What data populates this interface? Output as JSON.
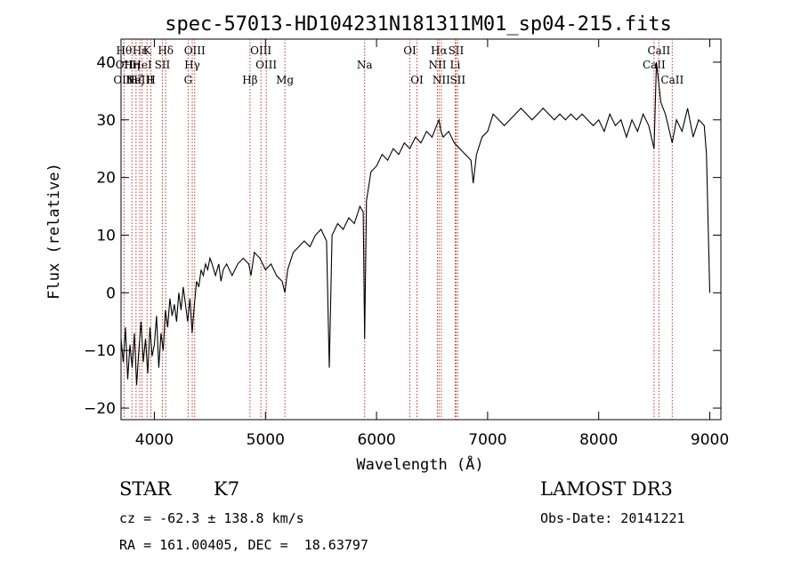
{
  "chart_data": {
    "type": "line",
    "title": "spec-57013-HD104231N181311M01_sp04-215.fits",
    "xlabel": "Wavelength (Å)",
    "ylabel": "Flux (relative)",
    "xlim": [
      3700,
      9100
    ],
    "ylim": [
      -22,
      44
    ],
    "x_ticks": [
      4000,
      5000,
      6000,
      7000,
      8000,
      9000
    ],
    "y_ticks": [
      -20,
      -10,
      0,
      10,
      20,
      30,
      40
    ],
    "grid": false,
    "spectrum": [
      [
        3700,
        -8
      ],
      [
        3720,
        -12
      ],
      [
        3740,
        -6
      ],
      [
        3760,
        -15
      ],
      [
        3780,
        -9
      ],
      [
        3800,
        -13
      ],
      [
        3820,
        -7
      ],
      [
        3840,
        -16
      ],
      [
        3860,
        -10
      ],
      [
        3880,
        -5
      ],
      [
        3900,
        -12
      ],
      [
        3920,
        -8
      ],
      [
        3940,
        -14
      ],
      [
        3960,
        -6
      ],
      [
        3980,
        -11
      ],
      [
        4000,
        -9
      ],
      [
        4020,
        -4
      ],
      [
        4040,
        -13
      ],
      [
        4060,
        -7
      ],
      [
        4080,
        -10
      ],
      [
        4100,
        -3
      ],
      [
        4120,
        -6
      ],
      [
        4140,
        -1
      ],
      [
        4160,
        -4
      ],
      [
        4180,
        -2
      ],
      [
        4200,
        -5
      ],
      [
        4220,
        0
      ],
      [
        4240,
        -3
      ],
      [
        4260,
        1
      ],
      [
        4280,
        -2
      ],
      [
        4300,
        -5
      ],
      [
        4320,
        -1
      ],
      [
        4340,
        -7
      ],
      [
        4360,
        -2
      ],
      [
        4380,
        2
      ],
      [
        4400,
        1
      ],
      [
        4420,
        4
      ],
      [
        4440,
        3
      ],
      [
        4460,
        5
      ],
      [
        4480,
        4
      ],
      [
        4500,
        6
      ],
      [
        4520,
        5
      ],
      [
        4550,
        3
      ],
      [
        4580,
        5
      ],
      [
        4600,
        2
      ],
      [
        4620,
        4
      ],
      [
        4650,
        5
      ],
      [
        4700,
        3
      ],
      [
        4750,
        5
      ],
      [
        4800,
        6
      ],
      [
        4850,
        5
      ],
      [
        4870,
        3
      ],
      [
        4900,
        7
      ],
      [
        4950,
        6
      ],
      [
        5000,
        4
      ],
      [
        5050,
        5
      ],
      [
        5100,
        3
      ],
      [
        5150,
        2
      ],
      [
        5175,
        0
      ],
      [
        5200,
        4
      ],
      [
        5250,
        7
      ],
      [
        5300,
        8
      ],
      [
        5350,
        9
      ],
      [
        5400,
        8
      ],
      [
        5450,
        10
      ],
      [
        5500,
        11
      ],
      [
        5550,
        9
      ],
      [
        5575,
        -13
      ],
      [
        5600,
        10
      ],
      [
        5650,
        12
      ],
      [
        5700,
        11
      ],
      [
        5750,
        13
      ],
      [
        5800,
        12
      ],
      [
        5850,
        15
      ],
      [
        5880,
        14
      ],
      [
        5893,
        -8
      ],
      [
        5910,
        16
      ],
      [
        5950,
        21
      ],
      [
        6000,
        22
      ],
      [
        6050,
        24
      ],
      [
        6100,
        23
      ],
      [
        6150,
        25
      ],
      [
        6200,
        24
      ],
      [
        6250,
        26
      ],
      [
        6300,
        25
      ],
      [
        6350,
        27
      ],
      [
        6400,
        26
      ],
      [
        6450,
        28
      ],
      [
        6500,
        27
      ],
      [
        6540,
        29
      ],
      [
        6563,
        30
      ],
      [
        6580,
        28
      ],
      [
        6600,
        27
      ],
      [
        6650,
        28
      ],
      [
        6700,
        26
      ],
      [
        6750,
        25
      ],
      [
        6800,
        24
      ],
      [
        6850,
        23
      ],
      [
        6870,
        19
      ],
      [
        6900,
        24
      ],
      [
        6950,
        27
      ],
      [
        7000,
        28
      ],
      [
        7050,
        31
      ],
      [
        7100,
        30
      ],
      [
        7150,
        29
      ],
      [
        7200,
        30
      ],
      [
        7250,
        31
      ],
      [
        7300,
        32
      ],
      [
        7350,
        31
      ],
      [
        7400,
        30
      ],
      [
        7450,
        31
      ],
      [
        7500,
        32
      ],
      [
        7550,
        31
      ],
      [
        7600,
        30
      ],
      [
        7650,
        31
      ],
      [
        7700,
        30
      ],
      [
        7750,
        31
      ],
      [
        7800,
        30
      ],
      [
        7850,
        31
      ],
      [
        7900,
        30
      ],
      [
        7950,
        29
      ],
      [
        8000,
        30
      ],
      [
        8050,
        28
      ],
      [
        8100,
        31
      ],
      [
        8150,
        29
      ],
      [
        8200,
        30
      ],
      [
        8250,
        27
      ],
      [
        8300,
        30
      ],
      [
        8350,
        28
      ],
      [
        8400,
        31
      ],
      [
        8450,
        29
      ],
      [
        8498,
        25
      ],
      [
        8520,
        40
      ],
      [
        8542,
        36
      ],
      [
        8560,
        33
      ],
      [
        8600,
        31
      ],
      [
        8662,
        26
      ],
      [
        8700,
        30
      ],
      [
        8750,
        28
      ],
      [
        8800,
        32
      ],
      [
        8850,
        27
      ],
      [
        8900,
        30
      ],
      [
        8950,
        29
      ],
      [
        8970,
        24
      ],
      [
        9000,
        0
      ]
    ],
    "lines": [
      {
        "w": 3727,
        "top": "Hθ",
        "mid": "OII",
        "bot": "OIII"
      },
      {
        "w": 3798,
        "top": "",
        "mid": "Hη",
        "bot": ""
      },
      {
        "w": 3835,
        "top": "",
        "mid": "",
        "bot": "Hζ"
      },
      {
        "w": 3869,
        "top": "Hε",
        "mid": "",
        "bot": "NeIII"
      },
      {
        "w": 3889,
        "top": "",
        "mid": "HeI",
        "bot": ""
      },
      {
        "w": 3934,
        "top": "K",
        "mid": "",
        "bot": ""
      },
      {
        "w": 3969,
        "top": "",
        "mid": "",
        "bot": "H"
      },
      {
        "w": 4072,
        "top": "",
        "mid": "SII",
        "bot": ""
      },
      {
        "w": 4102,
        "top": "Hδ",
        "mid": "",
        "bot": ""
      },
      {
        "w": 4304,
        "top": "",
        "mid": "",
        "bot": "G"
      },
      {
        "w": 4341,
        "top": "",
        "mid": "Hγ",
        "bot": ""
      },
      {
        "w": 4363,
        "top": "OIII",
        "mid": "",
        "bot": ""
      },
      {
        "w": 4861,
        "top": "",
        "mid": "",
        "bot": "Hβ"
      },
      {
        "w": 4959,
        "top": "OIII",
        "mid": "",
        "bot": ""
      },
      {
        "w": 5007,
        "top": "",
        "mid": "OIII",
        "bot": ""
      },
      {
        "w": 5175,
        "top": "",
        "mid": "",
        "bot": "Mg"
      },
      {
        "w": 5893,
        "top": "",
        "mid": "Na",
        "bot": ""
      },
      {
        "w": 6300,
        "top": "OI",
        "mid": "",
        "bot": ""
      },
      {
        "w": 6364,
        "top": "",
        "mid": "",
        "bot": "OI"
      },
      {
        "w": 6548,
        "top": "",
        "mid": "NII",
        "bot": ""
      },
      {
        "w": 6563,
        "top": "Hα",
        "mid": "",
        "bot": ""
      },
      {
        "w": 6583,
        "top": "",
        "mid": "",
        "bot": "NII"
      },
      {
        "w": 6708,
        "top": "",
        "mid": "Li",
        "bot": ""
      },
      {
        "w": 6716,
        "top": "SII",
        "mid": "",
        "bot": ""
      },
      {
        "w": 6731,
        "top": "",
        "mid": "",
        "bot": "SII"
      },
      {
        "w": 8498,
        "top": "",
        "mid": "CaII",
        "bot": ""
      },
      {
        "w": 8542,
        "top": "CaII",
        "mid": "",
        "bot": ""
      },
      {
        "w": 8662,
        "top": "",
        "mid": "",
        "bot": "CaII"
      }
    ],
    "colors": {
      "spectrum": "#000000",
      "lines": "#c0392b",
      "axes": "#000000"
    }
  },
  "info": {
    "star_label": "STAR",
    "spectral_type": "K7",
    "survey": "LAMOST DR3",
    "cz": "cz = -62.3 ± 138.8 km/s",
    "obs_date": "Obs-Date: 20141221",
    "coords": "RA = 161.00405, DEC =  18.63797"
  }
}
